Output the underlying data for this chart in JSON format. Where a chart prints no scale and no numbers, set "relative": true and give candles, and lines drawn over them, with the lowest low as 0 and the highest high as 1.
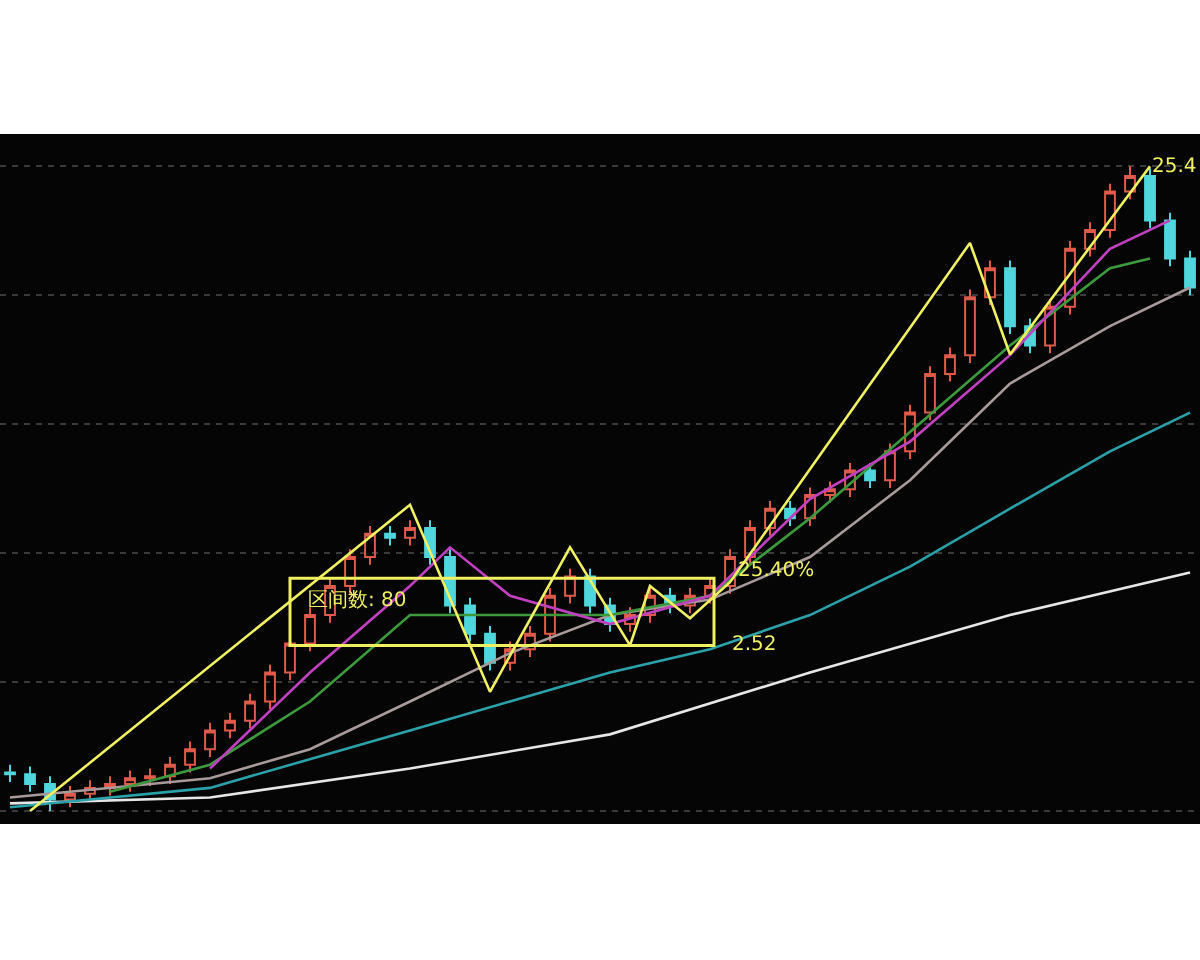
{
  "chart_data": {
    "type": "candlestick",
    "relative": true,
    "grid": "y",
    "categories": [
      null,
      null,
      null,
      null,
      null,
      null,
      null,
      null,
      null,
      null,
      null,
      null,
      null,
      null,
      null,
      null,
      null,
      null,
      null,
      null,
      null,
      null,
      null,
      null,
      null,
      null,
      null,
      null,
      null,
      null,
      null,
      null,
      null,
      null,
      null,
      null,
      null,
      null,
      null,
      null,
      null,
      null,
      null,
      null,
      null,
      null,
      null,
      null,
      null,
      null,
      null,
      null,
      null,
      null,
      null,
      null,
      null,
      null,
      null,
      null
    ],
    "ohlc": [
      [
        0.06,
        0.072,
        0.045,
        0.057
      ],
      [
        0.057,
        0.069,
        0.03,
        0.042
      ],
      [
        0.042,
        0.054,
        0,
        0.018
      ],
      [
        0.018,
        0.039,
        0.006,
        0.027
      ],
      [
        0.027,
        0.048,
        0.015,
        0.036
      ],
      [
        0.036,
        0.054,
        0.024,
        0.042
      ],
      [
        0.042,
        0.063,
        0.03,
        0.051
      ],
      [
        0.051,
        0.066,
        0.039,
        0.054
      ],
      [
        0.054,
        0.084,
        0.042,
        0.072
      ],
      [
        0.072,
        0.108,
        0.06,
        0.096
      ],
      [
        0.096,
        0.137,
        0.084,
        0.125
      ],
      [
        0.125,
        0.152,
        0.113,
        0.14
      ],
      [
        0.14,
        0.182,
        0.128,
        0.17
      ],
      [
        0.17,
        0.227,
        0.158,
        0.215
      ],
      [
        0.215,
        0.272,
        0.203,
        0.26
      ],
      [
        0.26,
        0.316,
        0.248,
        0.304
      ],
      [
        0.304,
        0.361,
        0.292,
        0.349
      ],
      [
        0.349,
        0.406,
        0.337,
        0.394
      ],
      [
        0.394,
        0.442,
        0.382,
        0.43
      ],
      [
        0.43,
        0.442,
        0.412,
        0.424
      ],
      [
        0.424,
        0.451,
        0.412,
        0.439
      ],
      [
        0.439,
        0.451,
        0.382,
        0.394
      ],
      [
        0.394,
        0.406,
        0.307,
        0.319
      ],
      [
        0.319,
        0.331,
        0.263,
        0.275
      ],
      [
        0.275,
        0.287,
        0.218,
        0.23
      ],
      [
        0.23,
        0.263,
        0.218,
        0.251
      ],
      [
        0.251,
        0.287,
        0.239,
        0.275
      ],
      [
        0.275,
        0.346,
        0.263,
        0.334
      ],
      [
        0.334,
        0.376,
        0.322,
        0.364
      ],
      [
        0.364,
        0.376,
        0.307,
        0.319
      ],
      [
        0.319,
        0.331,
        0.278,
        0.29
      ],
      [
        0.29,
        0.316,
        0.278,
        0.304
      ],
      [
        0.304,
        0.346,
        0.292,
        0.334
      ],
      [
        0.334,
        0.346,
        0.307,
        0.319
      ],
      [
        0.319,
        0.346,
        0.307,
        0.334
      ],
      [
        0.334,
        0.361,
        0.322,
        0.349
      ],
      [
        0.349,
        0.406,
        0.337,
        0.394
      ],
      [
        0.394,
        0.451,
        0.382,
        0.439
      ],
      [
        0.439,
        0.481,
        0.427,
        0.469
      ],
      [
        0.469,
        0.481,
        0.442,
        0.454
      ],
      [
        0.454,
        0.502,
        0.442,
        0.49
      ],
      [
        0.49,
        0.511,
        0.478,
        0.499
      ],
      [
        0.499,
        0.54,
        0.487,
        0.528
      ],
      [
        0.528,
        0.54,
        0.501,
        0.513
      ],
      [
        0.513,
        0.57,
        0.501,
        0.558
      ],
      [
        0.558,
        0.63,
        0.546,
        0.618
      ],
      [
        0.618,
        0.69,
        0.606,
        0.678
      ],
      [
        0.678,
        0.719,
        0.666,
        0.707
      ],
      [
        0.707,
        0.809,
        0.695,
        0.797
      ],
      [
        0.797,
        0.854,
        0.785,
        0.842
      ],
      [
        0.842,
        0.854,
        0.74,
        0.752
      ],
      [
        0.752,
        0.764,
        0.71,
        0.722
      ],
      [
        0.722,
        0.794,
        0.71,
        0.782
      ],
      [
        0.782,
        0.884,
        0.77,
        0.872
      ],
      [
        0.872,
        0.913,
        0.86,
        0.901
      ],
      [
        0.901,
        0.973,
        0.889,
        0.961
      ],
      [
        0.961,
        1,
        0.949,
        0.985
      ],
      [
        0.985,
        0.997,
        0.904,
        0.916
      ],
      [
        0.916,
        0.928,
        0.845,
        0.857
      ],
      [
        0.857,
        0.869,
        0.8,
        0.812
      ]
    ],
    "colors": [
      "#4fd6dc",
      "#4fd6dc",
      "#4fd6dc",
      "#e05a4a",
      "#e05a4a",
      "#e05a4a",
      "#e05a4a",
      "#e05a4a",
      "#e05a4a",
      "#e05a4a",
      "#e05a4a",
      "#e05a4a",
      "#e05a4a",
      "#e05a4a",
      "#e05a4a",
      "#e05a4a",
      "#e05a4a",
      "#e05a4a",
      "#e05a4a",
      "#4fd6dc",
      "#e05a4a",
      "#4fd6dc",
      "#4fd6dc",
      "#4fd6dc",
      "#4fd6dc",
      "#e05a4a",
      "#e05a4a",
      "#e05a4a",
      "#e05a4a",
      "#4fd6dc",
      "#4fd6dc",
      "#e05a4a",
      "#e05a4a",
      "#4fd6dc",
      "#e05a4a",
      "#e05a4a",
      "#e05a4a",
      "#e05a4a",
      "#e05a4a",
      "#4fd6dc",
      "#e05a4a",
      "#e05a4a",
      "#e05a4a",
      "#4fd6dc",
      "#e05a4a",
      "#e05a4a",
      "#e05a4a",
      "#e05a4a",
      "#e05a4a",
      "#e05a4a",
      "#4fd6dc",
      "#4fd6dc",
      "#e05a4a",
      "#e05a4a",
      "#e05a4a",
      "#e05a4a",
      "#e05a4a",
      "#4fd6dc",
      "#4fd6dc",
      "#4fd6dc"
    ],
    "series": [
      {
        "type": "line",
        "color": "#e6e6e6",
        "values": [
          0.012,
          null,
          null,
          null,
          null,
          null,
          null,
          null,
          null,
          null,
          0.021,
          null,
          null,
          null,
          null,
          null,
          null,
          null,
          null,
          null,
          0.066,
          null,
          null,
          null,
          null,
          null,
          null,
          null,
          null,
          null,
          0.119,
          null,
          null,
          null,
          null,
          null,
          null,
          null,
          null,
          null,
          0.215,
          null,
          null,
          null,
          null,
          null,
          null,
          null,
          null,
          null,
          0.304,
          null,
          null,
          null,
          null,
          null,
          null,
          null,
          null,
          0.37
        ]
      },
      {
        "type": "line",
        "color": "#2aa0a8",
        "values": [
          0.006,
          null,
          null,
          null,
          null,
          null,
          null,
          null,
          null,
          null,
          0.036,
          null,
          null,
          null,
          null,
          null,
          null,
          null,
          null,
          null,
          0.125,
          null,
          null,
          null,
          null,
          0.17,
          null,
          null,
          null,
          null,
          0.215,
          null,
          null,
          null,
          null,
          0.251,
          null,
          null,
          null,
          null,
          0.304,
          null,
          null,
          null,
          null,
          0.379,
          null,
          null,
          null,
          null,
          0.469,
          null,
          null,
          null,
          null,
          0.558,
          null,
          null,
          null,
          0.618
        ]
      },
      {
        "type": "line",
        "color": "#a89a9a",
        "values": [
          0.021,
          null,
          null,
          null,
          null,
          null,
          null,
          null,
          null,
          null,
          0.051,
          null,
          null,
          null,
          null,
          0.096,
          null,
          null,
          null,
          null,
          0.17,
          null,
          null,
          null,
          null,
          0.245,
          null,
          null,
          null,
          null,
          0.304,
          null,
          null,
          null,
          null,
          0.328,
          null,
          null,
          null,
          null,
          0.394,
          null,
          null,
          null,
          null,
          0.513,
          null,
          null,
          null,
          null,
          0.663,
          null,
          null,
          null,
          null,
          0.752,
          null,
          null,
          null,
          0.812
        ]
      },
      {
        "type": "line",
        "color": "#3c9a3c",
        "values": [
          null,
          null,
          null,
          null,
          null,
          0.03,
          null,
          null,
          null,
          null,
          0.072,
          null,
          null,
          null,
          null,
          0.17,
          null,
          null,
          null,
          null,
          0.304,
          null,
          null,
          null,
          null,
          0.304,
          null,
          null,
          null,
          null,
          0.304,
          null,
          null,
          null,
          null,
          0.334,
          null,
          null,
          null,
          null,
          0.454,
          null,
          null,
          null,
          null,
          0.588,
          null,
          null,
          null,
          null,
          0.722,
          null,
          null,
          null,
          null,
          0.842,
          null,
          0.857,
          null,
          null
        ]
      },
      {
        "type": "line",
        "color": "#c040c0",
        "values": [
          null,
          null,
          null,
          null,
          null,
          null,
          null,
          null,
          null,
          null,
          0.066,
          null,
          null,
          null,
          null,
          0.215,
          null,
          null,
          null,
          null,
          0.349,
          null,
          0.409,
          null,
          null,
          0.334,
          null,
          null,
          null,
          null,
          0.29,
          null,
          null,
          null,
          null,
          0.334,
          null,
          null,
          null,
          null,
          0.484,
          null,
          null,
          null,
          null,
          0.573,
          null,
          null,
          null,
          null,
          0.707,
          null,
          null,
          null,
          null,
          0.872,
          null,
          null,
          0.916,
          null
        ]
      },
      {
        "type": "line",
        "color": "#f0f060",
        "values": [
          null,
          0,
          null,
          null,
          null,
          null,
          null,
          null,
          null,
          null,
          null,
          null,
          null,
          null,
          null,
          null,
          null,
          null,
          null,
          null,
          0.475,
          null,
          null,
          null,
          0.185,
          null,
          null,
          null,
          0.409,
          null,
          null,
          0.257,
          0.349,
          null,
          0.299,
          null,
          0.355,
          null,
          null,
          null,
          null,
          null,
          null,
          null,
          null,
          null,
          null,
          null,
          0.881,
          null,
          0.708,
          null,
          null,
          null,
          null,
          null,
          null,
          1,
          null,
          null
        ]
      }
    ],
    "annotations": [
      "区间数: 80",
      "25.40%",
      "2.52",
      "25.4"
    ]
  }
}
